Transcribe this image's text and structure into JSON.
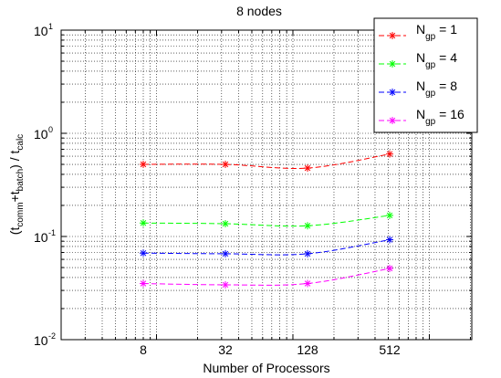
{
  "chart_data": {
    "type": "line",
    "title": "8 nodes",
    "xlabel": "Number of Processors",
    "ylabel": {
      "open": "(t",
      "sub1": "comm",
      "plus": "+t",
      "sub2": "batch",
      "mid": ") / t",
      "sub3": "calc"
    },
    "x_scale": "log2",
    "y_scale": "log10",
    "xlim": [
      2,
      2048
    ],
    "ylim": [
      0.01,
      10
    ],
    "x": [
      8,
      32,
      128,
      512
    ],
    "xtick_labels": [
      "8",
      "32",
      "128",
      "512"
    ],
    "ytick_labels": [
      {
        "value": 0.01,
        "base": "10",
        "exp": "-2"
      },
      {
        "value": 0.1,
        "base": "10",
        "exp": "-1"
      },
      {
        "value": 1,
        "base": "10",
        "exp": "0"
      },
      {
        "value": 10,
        "base": "10",
        "exp": "1"
      }
    ],
    "grid": true,
    "legend_position": "top-right",
    "series": [
      {
        "name": {
          "base": "N",
          "sub": "gp",
          "rest": " = 1"
        },
        "color": "#ff0000",
        "marker": "asterisk",
        "values": [
          0.5,
          0.5,
          0.46,
          0.63
        ]
      },
      {
        "name": {
          "base": "N",
          "sub": "gp",
          "rest": " = 4"
        },
        "color": "#00ff00",
        "marker": "asterisk",
        "values": [
          0.135,
          0.133,
          0.127,
          0.16
        ]
      },
      {
        "name": {
          "base": "N",
          "sub": "gp",
          "rest": " = 8"
        },
        "color": "#0000ff",
        "marker": "asterisk",
        "values": [
          0.069,
          0.068,
          0.068,
          0.093
        ]
      },
      {
        "name": {
          "base": "N",
          "sub": "gp",
          "rest": " = 16"
        },
        "color": "#ff00ff",
        "marker": "asterisk",
        "values": [
          0.035,
          0.034,
          0.035,
          0.049
        ]
      }
    ]
  }
}
